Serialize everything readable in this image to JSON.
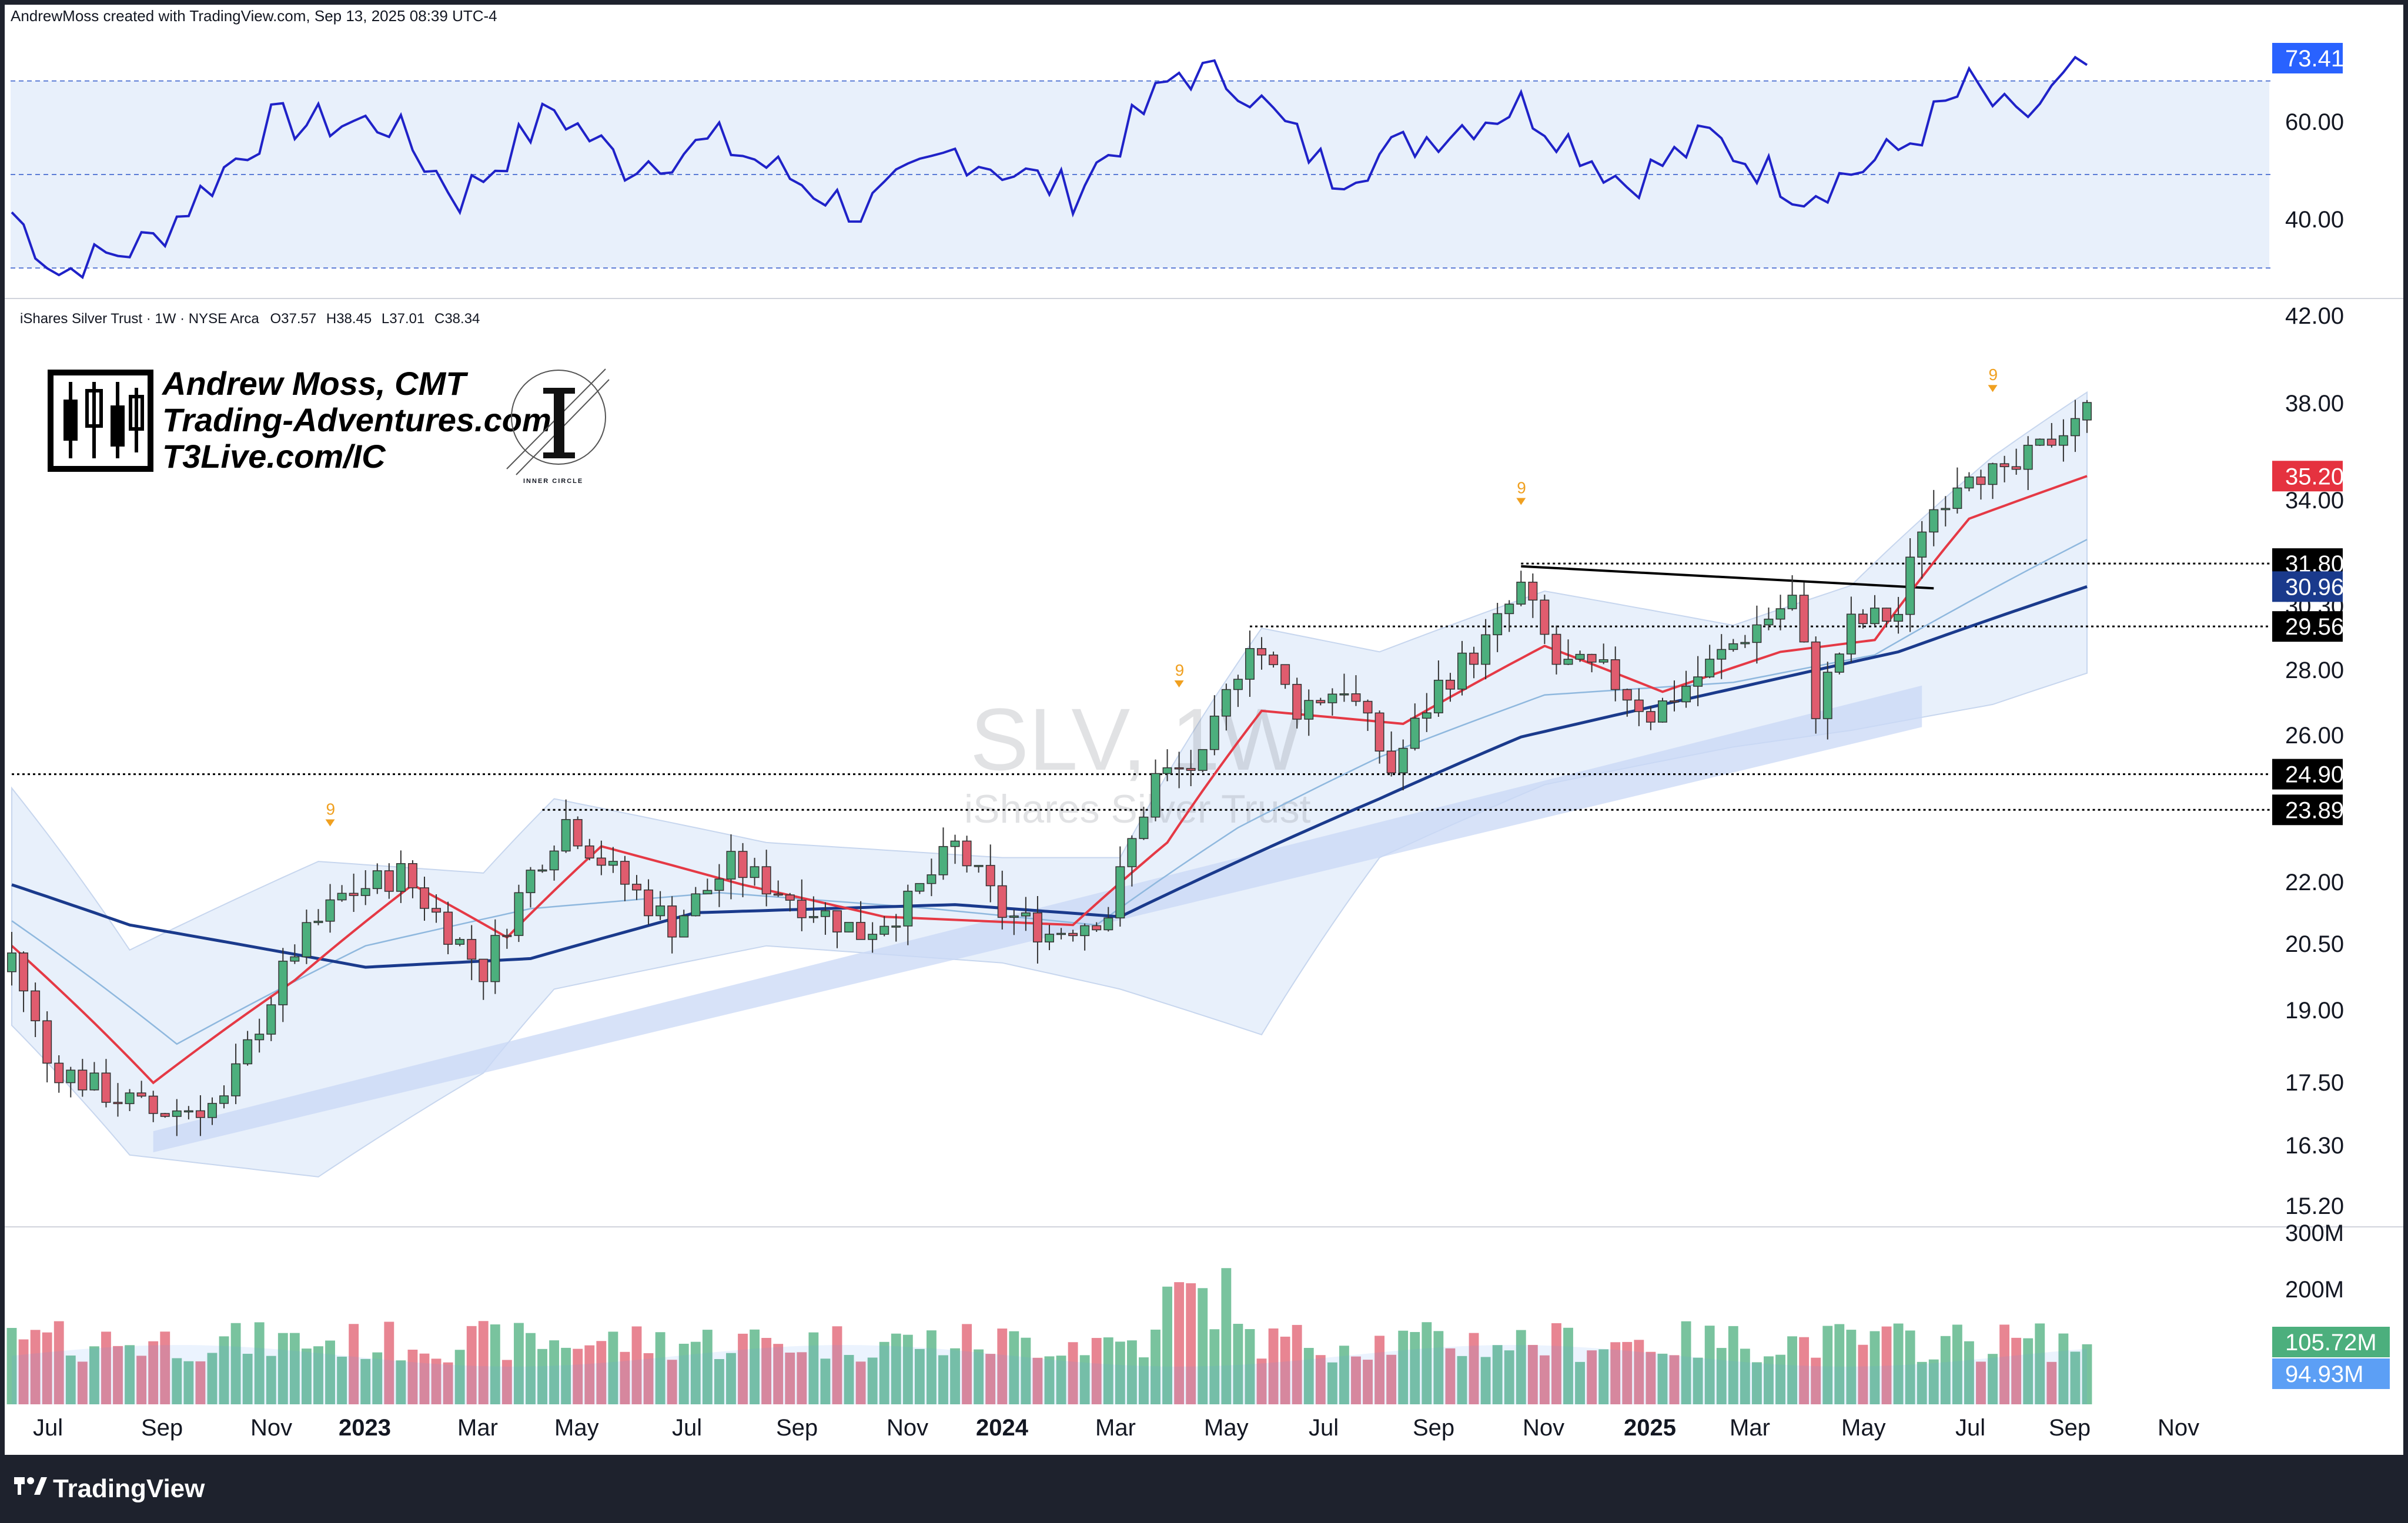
{
  "credit": "AndrewMoss created with TradingView.com, Sep 13, 2025 08:39 UTC-4",
  "symbol_info": {
    "name": "iShares Silver Trust · 1W · NYSE Arca",
    "open": "O37.57",
    "high": "H38.45",
    "low": "L37.01",
    "close": "C38.34"
  },
  "logo": {
    "line1": "Andrew Moss, CMT",
    "line2": "Trading-Adventures.com",
    "line3": "T3Live.com/IC",
    "badge_caption": "INNER CIRCLE"
  },
  "watermark": {
    "ticker": "SLV, 1W",
    "name": "iShares Silver Trust"
  },
  "brand": "TradingView",
  "colors": {
    "up": "#4caf7d",
    "down": "#e05c6e",
    "ema_fast": "#e53945",
    "ema_mid": "#8fb8de",
    "ema_slow": "#1a3a8c",
    "rsi_line": "#1f22c8",
    "band_fill": "#e8f0fb",
    "channel_fill": "#c9d8f5",
    "background": "#ffffff",
    "frame": "#1e222d"
  },
  "rsi_panel": {
    "axis_labels": [
      "60.00",
      "40.00"
    ],
    "current_label": "73.41",
    "levels": [
      70,
      50,
      30
    ],
    "range": [
      27,
      76
    ]
  },
  "price_axis": {
    "labels": [
      "42.00",
      "38.00",
      "34.00",
      "28.00",
      "26.00",
      "22.00",
      "20.50",
      "19.00",
      "17.50",
      "16.30",
      "15.20"
    ],
    "hidden_label": "30.30"
  },
  "price_badges": [
    {
      "text": "35.20",
      "value": 35.2,
      "style": "red"
    },
    {
      "text": "31.80",
      "value": 31.8,
      "style": "black"
    },
    {
      "text": "30.96",
      "value": 30.96,
      "style": "navy"
    },
    {
      "text": "29.56",
      "value": 29.56,
      "style": "black"
    },
    {
      "text": "24.90",
      "value": 24.9,
      "style": "black"
    },
    {
      "text": "23.89",
      "value": 23.89,
      "style": "black"
    }
  ],
  "volume_axis": {
    "labels": [
      "300M",
      "200M"
    ],
    "badges": [
      {
        "text": "105.72M",
        "style": "green"
      },
      {
        "text": "94.93M",
        "style": "blue"
      }
    ]
  },
  "time_axis": [
    {
      "label": "Jul",
      "bold": false
    },
    {
      "label": "Sep",
      "bold": false
    },
    {
      "label": "Nov",
      "bold": false
    },
    {
      "label": "2023",
      "bold": true
    },
    {
      "label": "Mar",
      "bold": false
    },
    {
      "label": "May",
      "bold": false
    },
    {
      "label": "Jul",
      "bold": false
    },
    {
      "label": "Sep",
      "bold": false
    },
    {
      "label": "Nov",
      "bold": false
    },
    {
      "label": "2024",
      "bold": true
    },
    {
      "label": "Mar",
      "bold": false
    },
    {
      "label": "May",
      "bold": false
    },
    {
      "label": "Jul",
      "bold": false
    },
    {
      "label": "Sep",
      "bold": false
    },
    {
      "label": "Nov",
      "bold": false
    },
    {
      "label": "2025",
      "bold": true
    },
    {
      "label": "Mar",
      "bold": false
    },
    {
      "label": "May",
      "bold": false
    },
    {
      "label": "Jul",
      "bold": false
    },
    {
      "label": "Sep",
      "bold": false
    },
    {
      "label": "Nov",
      "bold": false
    }
  ],
  "chart_data": {
    "type": "candlestick",
    "timeframe": "1W",
    "scale": "log",
    "price_range": [
      14.8,
      43.5
    ],
    "volume_range_millions": [
      0,
      300
    ],
    "bar_weeks": 176,
    "keypoints": [
      {
        "week": 0,
        "close": 20.2
      },
      {
        "week": 3,
        "close": 17.8
      },
      {
        "week": 8,
        "close": 17.2
      },
      {
        "week": 12,
        "close": 16.8
      },
      {
        "week": 18,
        "close": 17.0
      },
      {
        "week": 24,
        "close": 20.3
      },
      {
        "week": 28,
        "close": 21.6
      },
      {
        "week": 33,
        "close": 22.2
      },
      {
        "week": 37,
        "close": 20.8
      },
      {
        "week": 40,
        "close": 19.8
      },
      {
        "week": 44,
        "close": 22.2
      },
      {
        "week": 47,
        "close": 23.6
      },
      {
        "week": 51,
        "close": 22.2
      },
      {
        "week": 56,
        "close": 20.9
      },
      {
        "week": 61,
        "close": 22.4
      },
      {
        "week": 66,
        "close": 21.6
      },
      {
        "week": 72,
        "close": 20.7
      },
      {
        "week": 76,
        "close": 21.4
      },
      {
        "week": 80,
        "close": 22.9
      },
      {
        "week": 84,
        "close": 21.2
      },
      {
        "week": 88,
        "close": 20.7
      },
      {
        "week": 93,
        "close": 21.2
      },
      {
        "week": 97,
        "close": 24.8
      },
      {
        "week": 101,
        "close": 25.2
      },
      {
        "week": 105,
        "close": 29.2
      },
      {
        "week": 109,
        "close": 26.9
      },
      {
        "week": 113,
        "close": 27.6
      },
      {
        "week": 117,
        "close": 25.0
      },
      {
        "week": 121,
        "close": 27.6
      },
      {
        "week": 125,
        "close": 29.0
      },
      {
        "week": 128,
        "close": 30.9
      },
      {
        "week": 131,
        "close": 28.3
      },
      {
        "week": 135,
        "close": 28.0
      },
      {
        "week": 139,
        "close": 26.7
      },
      {
        "week": 143,
        "close": 27.9
      },
      {
        "week": 147,
        "close": 29.3
      },
      {
        "week": 151,
        "close": 30.5
      },
      {
        "week": 153,
        "close": 26.9
      },
      {
        "week": 156,
        "close": 29.6
      },
      {
        "week": 160,
        "close": 30.0
      },
      {
        "week": 162,
        "close": 33.3
      },
      {
        "week": 166,
        "close": 35.7
      },
      {
        "week": 169,
        "close": 35.0
      },
      {
        "week": 172,
        "close": 36.3
      },
      {
        "week": 176,
        "close": 38.34
      }
    ],
    "rsi_keypoints": [
      {
        "week": 0,
        "value": 42
      },
      {
        "week": 4,
        "value": 29
      },
      {
        "week": 12,
        "value": 36
      },
      {
        "week": 22,
        "value": 61
      },
      {
        "week": 32,
        "value": 61
      },
      {
        "week": 38,
        "value": 45
      },
      {
        "week": 46,
        "value": 64
      },
      {
        "week": 52,
        "value": 52
      },
      {
        "week": 60,
        "value": 57
      },
      {
        "week": 72,
        "value": 42
      },
      {
        "week": 80,
        "value": 55
      },
      {
        "week": 90,
        "value": 46
      },
      {
        "week": 99,
        "value": 72
      },
      {
        "week": 104,
        "value": 70
      },
      {
        "week": 112,
        "value": 50
      },
      {
        "week": 120,
        "value": 58
      },
      {
        "week": 128,
        "value": 65
      },
      {
        "week": 137,
        "value": 48
      },
      {
        "week": 144,
        "value": 58
      },
      {
        "week": 152,
        "value": 46
      },
      {
        "week": 160,
        "value": 55
      },
      {
        "week": 166,
        "value": 69
      },
      {
        "week": 170,
        "value": 61
      },
      {
        "week": 176,
        "value": 73.41
      }
    ],
    "ema_fast_keypoints": [
      {
        "week": 0,
        "value": 20.4
      },
      {
        "week": 12,
        "value": 17.4
      },
      {
        "week": 24,
        "value": 19.6
      },
      {
        "week": 34,
        "value": 21.9
      },
      {
        "week": 42,
        "value": 20.6
      },
      {
        "week": 50,
        "value": 22.9
      },
      {
        "week": 62,
        "value": 21.9
      },
      {
        "week": 74,
        "value": 21.1
      },
      {
        "week": 90,
        "value": 20.9
      },
      {
        "week": 98,
        "value": 23.0
      },
      {
        "week": 106,
        "value": 26.8
      },
      {
        "week": 118,
        "value": 26.4
      },
      {
        "week": 130,
        "value": 28.9
      },
      {
        "week": 140,
        "value": 27.4
      },
      {
        "week": 150,
        "value": 28.7
      },
      {
        "week": 158,
        "value": 29.1
      },
      {
        "week": 166,
        "value": 33.5
      },
      {
        "week": 176,
        "value": 35.2
      }
    ],
    "ema_mid_keypoints": [
      {
        "week": 0,
        "value": 21.0
      },
      {
        "week": 14,
        "value": 18.2
      },
      {
        "week": 30,
        "value": 20.4
      },
      {
        "week": 44,
        "value": 21.3
      },
      {
        "week": 60,
        "value": 21.7
      },
      {
        "week": 78,
        "value": 21.3
      },
      {
        "week": 92,
        "value": 20.9
      },
      {
        "week": 104,
        "value": 23.4
      },
      {
        "week": 116,
        "value": 25.4
      },
      {
        "week": 130,
        "value": 27.3
      },
      {
        "week": 146,
        "value": 27.7
      },
      {
        "week": 158,
        "value": 28.6
      },
      {
        "week": 176,
        "value": 32.7
      }
    ],
    "ema_slow_keypoints": [
      {
        "week": 0,
        "value": 21.9
      },
      {
        "week": 10,
        "value": 20.9
      },
      {
        "week": 30,
        "value": 19.9
      },
      {
        "week": 44,
        "value": 20.1
      },
      {
        "week": 58,
        "value": 21.2
      },
      {
        "week": 80,
        "value": 21.4
      },
      {
        "week": 94,
        "value": 21.1
      },
      {
        "week": 104,
        "value": 22.5
      },
      {
        "week": 116,
        "value": 24.2
      },
      {
        "week": 128,
        "value": 26.0
      },
      {
        "week": 146,
        "value": 27.5
      },
      {
        "week": 160,
        "value": 28.7
      },
      {
        "week": 176,
        "value": 30.96
      }
    ],
    "bollinger_keypoints": [
      {
        "week": 0,
        "upper": 24.5,
        "lower": 18.6
      },
      {
        "week": 10,
        "upper": 20.3,
        "lower": 16.0
      },
      {
        "week": 26,
        "upper": 22.5,
        "lower": 15.6
      },
      {
        "week": 40,
        "upper": 22.2,
        "lower": 17.6
      },
      {
        "week": 46,
        "upper": 24.2,
        "lower": 19.4
      },
      {
        "week": 64,
        "upper": 23.0,
        "lower": 20.4
      },
      {
        "week": 84,
        "upper": 22.6,
        "lower": 20.0
      },
      {
        "week": 94,
        "upper": 22.6,
        "lower": 19.4
      },
      {
        "week": 106,
        "upper": 29.5,
        "lower": 18.4
      },
      {
        "week": 116,
        "upper": 28.7,
        "lower": 22.6
      },
      {
        "week": 130,
        "upper": 30.8,
        "lower": 24.6
      },
      {
        "week": 146,
        "upper": 29.6,
        "lower": 25.7
      },
      {
        "week": 156,
        "upper": 31.0,
        "lower": 26.2
      },
      {
        "week": 168,
        "upper": 36.0,
        "lower": 27.0
      },
      {
        "week": 176,
        "upper": 38.8,
        "lower": 28.0
      }
    ],
    "uptrend_channel": [
      {
        "week": 12,
        "lower": 16.05,
        "upper": 16.45
      },
      {
        "week": 162,
        "lower": 26.3,
        "upper": 27.6
      }
    ],
    "horizontal_levels": [
      31.8,
      29.56,
      24.9,
      23.89
    ],
    "resistance_trendline": [
      {
        "week": 128,
        "value": 31.7
      },
      {
        "week": 163,
        "value": 30.9
      }
    ],
    "td_nine_weeks": [
      27,
      99,
      128,
      168
    ],
    "volume_millions_avg": 105,
    "volume_last_millions": 105.72,
    "volume_ma_millions": 94.93
  }
}
